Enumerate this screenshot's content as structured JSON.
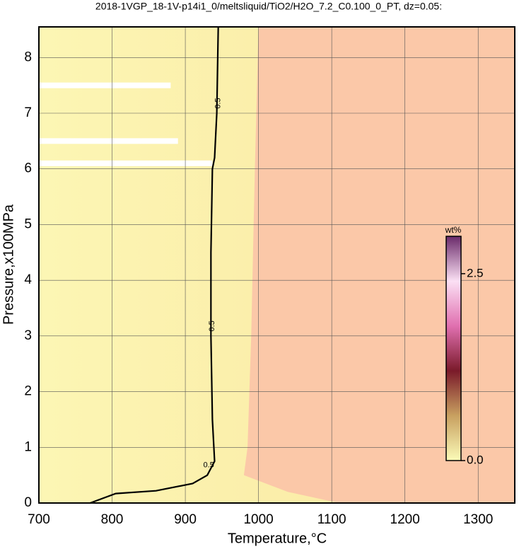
{
  "chart_data": {
    "type": "contour",
    "title": "2018-1VGP_18-1V-p14i1_0/meltsliquid/TiO2/H2O_7.2_C0.100_0_PT, dz=0.05:",
    "x_label": "Temperature,°C",
    "y_label": "Pressure,x100MPa",
    "xlim": [
      700,
      1350
    ],
    "ylim": [
      0,
      8.55
    ],
    "xticks": [
      700,
      800,
      900,
      1000,
      1100,
      1200,
      1300
    ],
    "yticks": [
      0,
      1,
      2,
      3,
      4,
      5,
      6,
      7,
      8
    ],
    "grid": true,
    "boundary": {
      "x": [
        1000,
        995,
        990,
        985,
        980,
        1040,
        1110
      ],
      "y": [
        8.55,
        6,
        3,
        1,
        0.5,
        0.2,
        0
      ]
    },
    "no_data": {
      "y": [
        7.5,
        6.5,
        6.1
      ],
      "x_end": [
        880,
        890,
        937
      ]
    },
    "contours": [
      {
        "level": 0.5,
        "x": [
          770,
          805,
          860,
          910,
          930,
          940,
          937,
          935,
          935,
          937,
          940,
          943,
          945
        ],
        "y": [
          0,
          0.17,
          0.22,
          0.35,
          0.5,
          0.75,
          1.5,
          3,
          4.5,
          6,
          6.2,
          7,
          8.55
        ]
      }
    ],
    "colorbar": {
      "label": "wt%",
      "clim": [
        0,
        3.0
      ],
      "ticks": [
        {
          "value": 0,
          "label": "0.0"
        },
        {
          "value": 2.5,
          "label": "2.5"
        }
      ],
      "colors": [
        "#fbfbb8",
        "#c8a060",
        "#7a1a2a",
        "#e070b0",
        "#fbe0f4",
        "#6a2a6a"
      ]
    }
  }
}
